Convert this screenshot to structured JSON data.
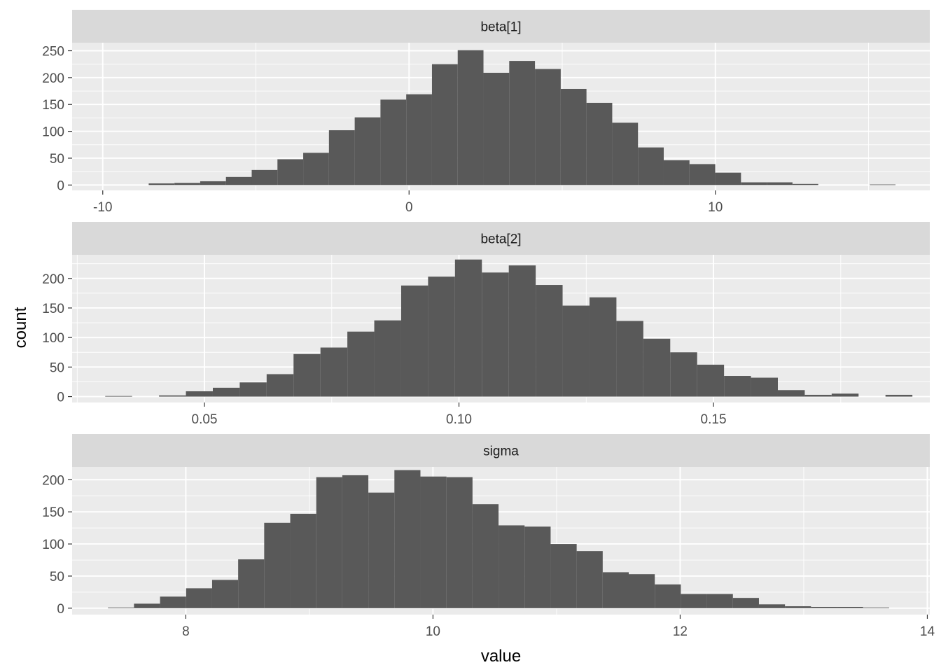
{
  "figure": {
    "xlabel": "value",
    "ylabel": "count"
  },
  "colors": {
    "panel_background": "#ebebeb",
    "strip_background": "#d9d9d9",
    "bar_fill": "#595959",
    "grid_major": "#ffffff",
    "tick_text": "#4d4d4d"
  },
  "chart_data": [
    {
      "type": "bar",
      "title": "beta[1]",
      "xlim": [
        -11,
        17
      ],
      "ylim": [
        -10,
        265
      ],
      "x_major_breaks": [
        -10,
        0,
        10
      ],
      "x_minor_breaks": [
        -5,
        5,
        15
      ],
      "y_major_breaks": [
        0,
        50,
        100,
        150,
        200,
        250
      ],
      "y_minor_breaks": [
        25,
        75,
        125,
        175,
        225
      ],
      "x_tick_labels": [
        "-10",
        "0",
        "10"
      ],
      "y_tick_labels": [
        "0",
        "50",
        "100",
        "150",
        "200",
        "250"
      ],
      "bin_start": -8.5,
      "bin_width": 0.8407,
      "values": [
        3,
        4,
        7,
        15,
        28,
        48,
        60,
        102,
        126,
        159,
        169,
        225,
        251,
        209,
        231,
        216,
        179,
        153,
        116,
        70,
        46,
        39,
        23,
        5,
        5,
        2,
        0,
        0,
        1
      ]
    },
    {
      "type": "bar",
      "title": "beta[2]",
      "xlim": [
        0.024,
        0.1925
      ],
      "ylim": [
        -10,
        240
      ],
      "x_major_breaks": [
        0.05,
        0.1,
        0.15
      ],
      "x_minor_breaks": [
        0.025,
        0.075,
        0.125,
        0.175
      ],
      "y_major_breaks": [
        0,
        50,
        100,
        150,
        200
      ],
      "y_minor_breaks": [
        25,
        75,
        125,
        175,
        225
      ],
      "x_tick_labels": [
        "0.05",
        "0.10",
        "0.15"
      ],
      "y_tick_labels": [
        "0",
        "50",
        "100",
        "150",
        "200"
      ],
      "bin_start": 0.0305,
      "bin_width": 0.005286,
      "values": [
        1,
        0,
        2,
        9,
        15,
        24,
        38,
        72,
        83,
        110,
        129,
        188,
        203,
        232,
        210,
        222,
        189,
        154,
        168,
        128,
        98,
        75,
        54,
        35,
        32,
        11,
        3,
        5,
        0,
        3
      ]
    },
    {
      "type": "bar",
      "title": "sigma",
      "xlim": [
        7.08,
        14.02
      ],
      "ylim": [
        -10,
        220
      ],
      "x_major_breaks": [
        8,
        10,
        12,
        14
      ],
      "x_minor_breaks": [
        7,
        9,
        11,
        13
      ],
      "y_major_breaks": [
        0,
        50,
        100,
        150,
        200
      ],
      "y_minor_breaks": [
        25,
        75,
        125,
        175
      ],
      "x_tick_labels": [
        "8",
        "10",
        "12",
        "14"
      ],
      "y_tick_labels": [
        "0",
        "50",
        "100",
        "150",
        "200"
      ],
      "bin_start": 7.37,
      "bin_width": 0.2107,
      "values": [
        1,
        7,
        18,
        31,
        44,
        76,
        133,
        147,
        204,
        207,
        180,
        215,
        205,
        204,
        162,
        129,
        127,
        100,
        89,
        56,
        53,
        37,
        22,
        22,
        16,
        6,
        3,
        2,
        2,
        1
      ]
    }
  ]
}
